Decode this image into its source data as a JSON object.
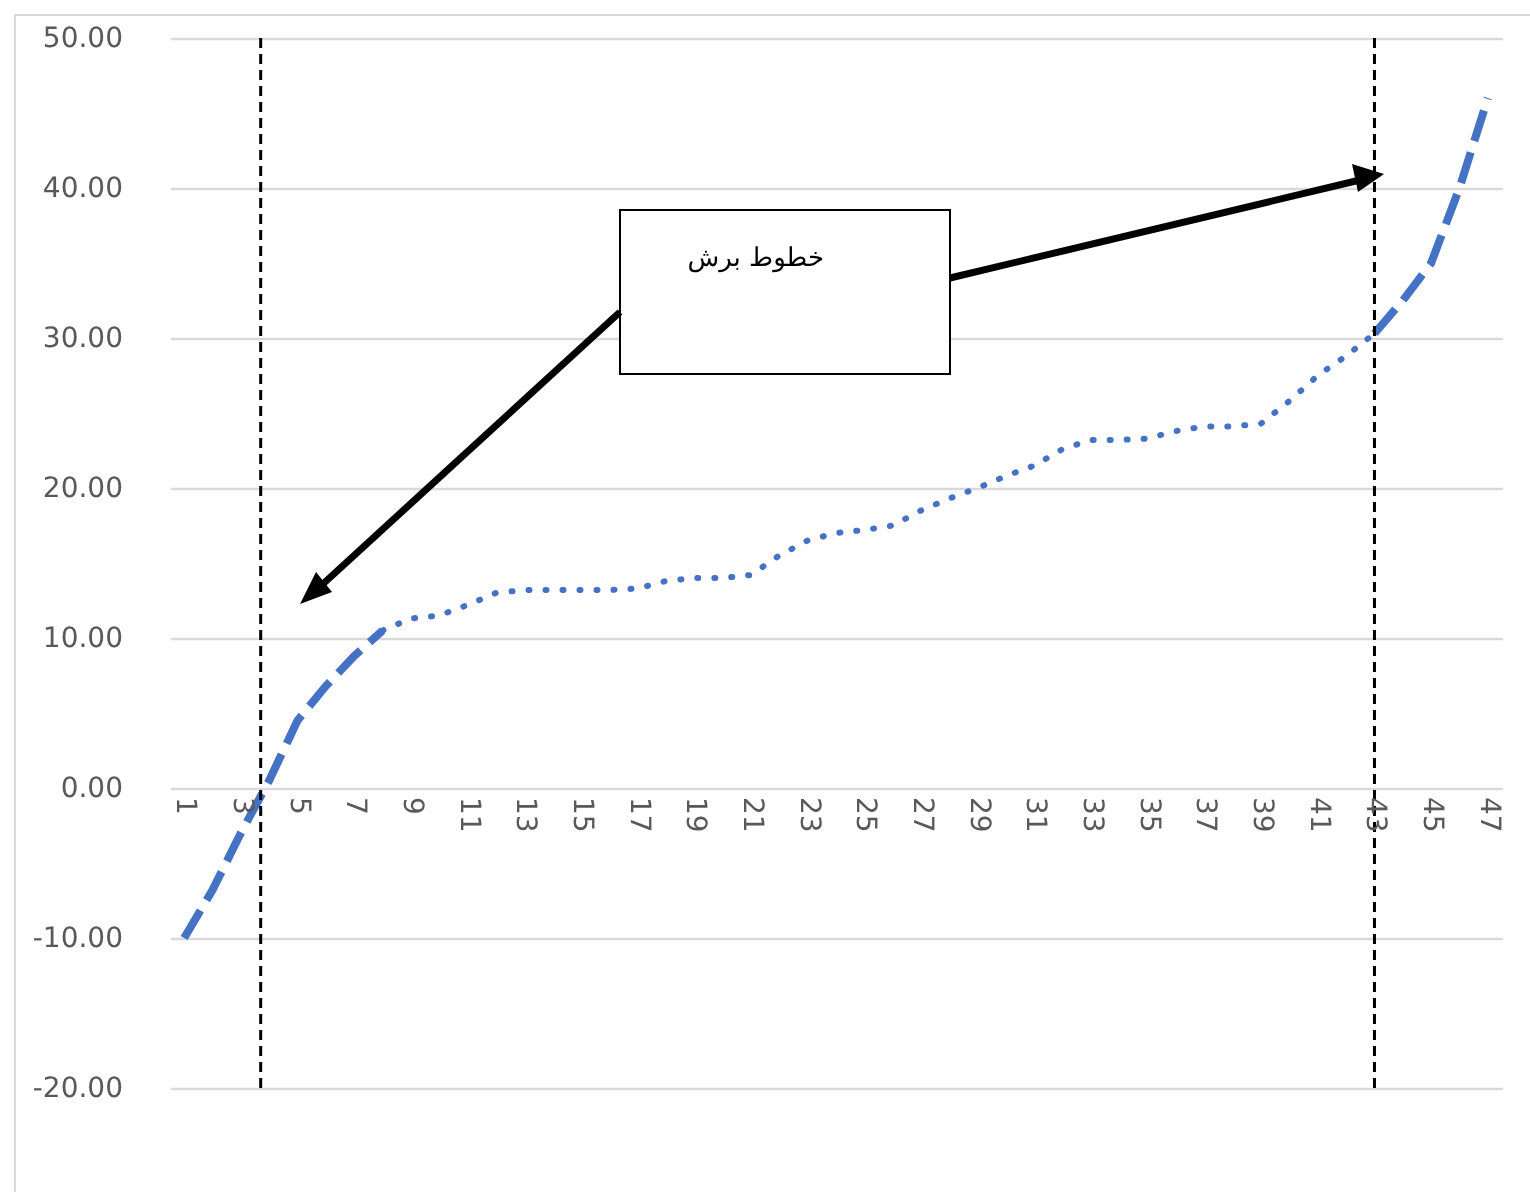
{
  "chart_data": {
    "type": "line",
    "annotations": [
      "خطوط برش"
    ],
    "series": [
      {
        "color": "#4472c4",
        "line_style": "dashed",
        "x": [
          1,
          2,
          3,
          4,
          5,
          6,
          7,
          8
        ],
        "values": [
          -10,
          -6.8,
          -3,
          0.5,
          4.5,
          6.8,
          8.8,
          10.5
        ]
      },
      {
        "color": "#4472c4",
        "line_style": "dotted",
        "x": [
          8,
          9,
          10,
          11,
          12,
          13,
          14,
          15,
          16,
          17,
          18,
          19,
          20,
          21,
          22,
          23,
          24,
          25,
          26,
          27,
          28,
          29,
          30,
          31,
          32,
          33,
          34,
          35,
          36,
          37,
          38,
          39,
          40,
          41,
          42,
          43
        ],
        "values": [
          10.5,
          11.3,
          11.5,
          12.2,
          13,
          13.2,
          13.2,
          13.2,
          13.2,
          13.3,
          13.8,
          14,
          14,
          14.2,
          15.5,
          16.5,
          17,
          17.2,
          17.5,
          18.5,
          19.3,
          20,
          20.8,
          21.5,
          22.6,
          23.2,
          23.2,
          23.3,
          23.8,
          24.1,
          24.1,
          24.3,
          25.8,
          27.5,
          28.8,
          30.3
        ]
      },
      {
        "color": "#4472c4",
        "line_style": "dashed",
        "x": [
          43,
          44,
          45,
          46,
          47
        ],
        "values": [
          30.3,
          32.5,
          35,
          40,
          46
        ]
      }
    ],
    "xlim": [
      0.5,
      47.5
    ],
    "xticks": [
      1,
      3,
      5,
      7,
      9,
      11,
      13,
      15,
      17,
      19,
      21,
      23,
      25,
      27,
      29,
      31,
      33,
      35,
      37,
      39,
      41,
      43,
      45,
      47
    ],
    "ylim": [
      -20,
      50
    ],
    "yticks": [
      {
        "value": -20,
        "label": "-20.00"
      },
      {
        "value": -10,
        "label": "-10.00"
      },
      {
        "value": 0,
        "label": "0.00"
      },
      {
        "value": 10,
        "label": "10.00"
      },
      {
        "value": 20,
        "label": "20.00"
      },
      {
        "value": 30,
        "label": "30.00"
      },
      {
        "value": 40,
        "label": "40.00"
      },
      {
        "value": 50,
        "label": "50.00"
      }
    ],
    "grid": "y",
    "ref_lines": [
      {
        "axis": "x",
        "value": 3.7,
        "color": "#000000",
        "line_style": "dashed"
      },
      {
        "axis": "x",
        "value": 43,
        "color": "#000000",
        "line_style": "dashed"
      }
    ]
  }
}
